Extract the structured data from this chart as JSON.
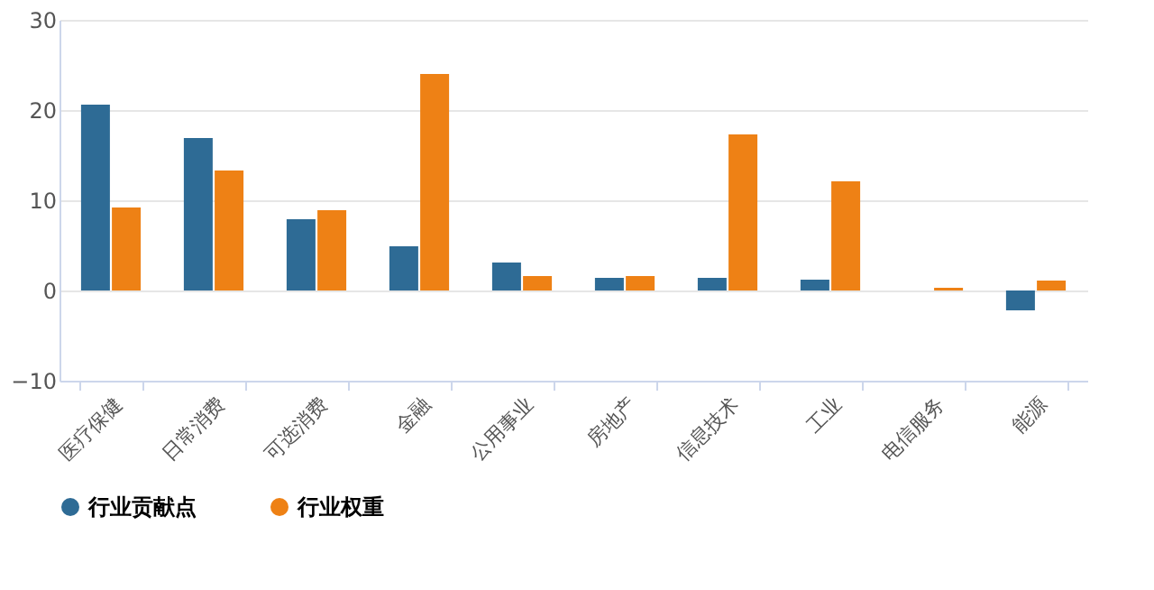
{
  "chart_data": {
    "type": "bar",
    "categories": [
      "医疗保健",
      "日常消费",
      "可选消费",
      "金融",
      "公用事业",
      "房地产",
      "信息技术",
      "工业",
      "电信服务",
      "能源"
    ],
    "series": [
      {
        "name": "行业贡献点",
        "color": "#2e6b95",
        "values": [
          20.6,
          16.9,
          7.9,
          4.9,
          3.1,
          1.4,
          1.4,
          1.2,
          0,
          -2.2
        ]
      },
      {
        "name": "行业权重",
        "color": "#ee8115",
        "values": [
          9.2,
          13.3,
          8.9,
          24.0,
          1.6,
          1.6,
          17.3,
          12.1,
          0.3,
          1.1
        ]
      }
    ],
    "ylim": [
      -10,
      30
    ],
    "yticks": [
      -10,
      0,
      10,
      20,
      30
    ],
    "grid": "y",
    "legend": "bottom"
  }
}
